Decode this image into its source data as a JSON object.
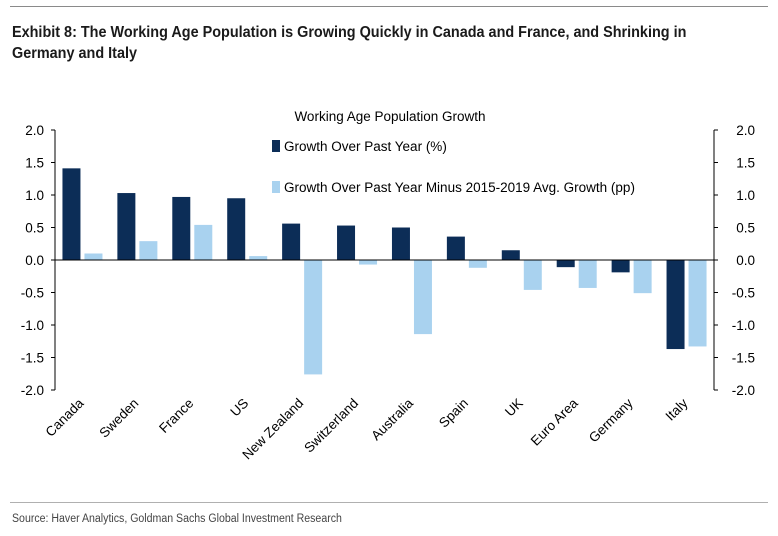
{
  "exhibit": {
    "title_line1": "Exhibit 8: The Working Age Population is Growing Quickly in Canada and France, and Shrinking in",
    "title_line2": "Germany and Italy"
  },
  "source": "Source: Haver Analytics, Goldman Sachs Global Investment Research",
  "chart_data": {
    "type": "bar",
    "title": "Working Age Population Growth",
    "categories": [
      "Canada",
      "Sweden",
      "France",
      "US",
      "New Zealand",
      "Switzerland",
      "Australia",
      "Spain",
      "UK",
      "Euro Area",
      "Germany",
      "Italy"
    ],
    "series": [
      {
        "name": "Growth Over Past Year (%)",
        "color": "#0c2d57",
        "values": [
          1.41,
          1.03,
          0.97,
          0.95,
          0.56,
          0.53,
          0.5,
          0.36,
          0.15,
          -0.11,
          -0.19,
          -1.37
        ]
      },
      {
        "name": "Growth Over Past Year Minus 2015-2019 Avg. Growth (pp)",
        "color": "#a9d2ef",
        "values": [
          0.1,
          0.29,
          0.54,
          0.06,
          -1.76,
          -0.07,
          -1.14,
          -0.12,
          -0.46,
          -0.43,
          -0.51,
          -1.33
        ]
      }
    ],
    "y_ticks": [
      "2.0",
      "1.5",
      "1.0",
      "0.5",
      "0.0",
      "-0.5",
      "-1.0",
      "-1.5",
      "-2.0"
    ],
    "ylim": [
      -2.0,
      2.0
    ],
    "xlabel": "",
    "ylabel": "",
    "legend": "top-right inside plot"
  }
}
